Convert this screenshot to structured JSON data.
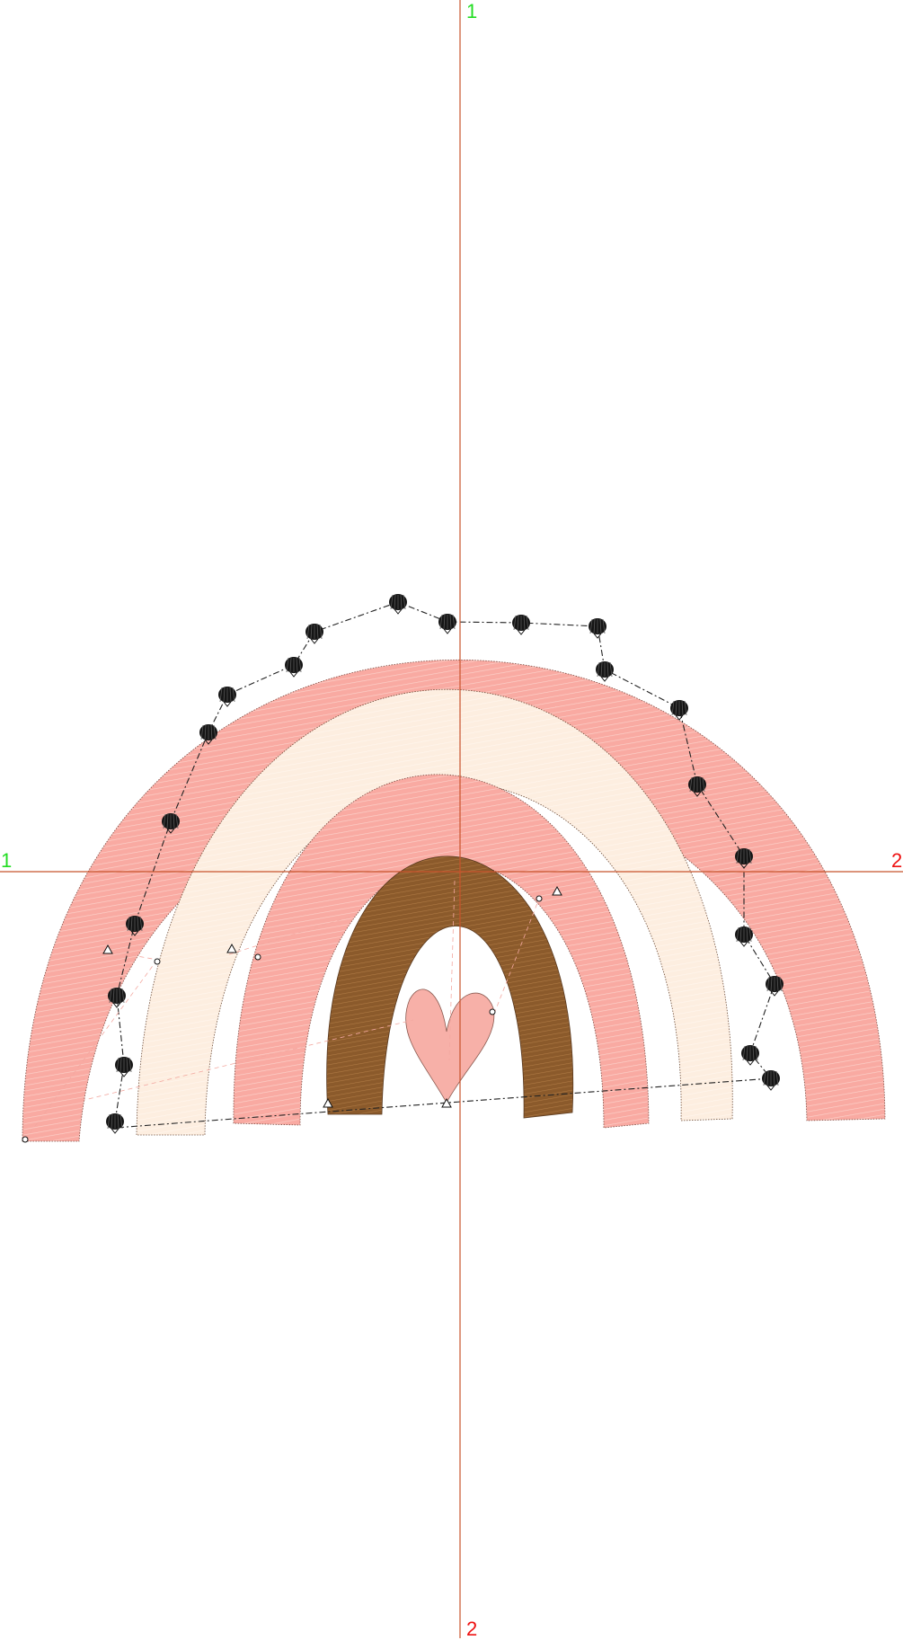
{
  "axes": {
    "vertical": {
      "top_label": "1",
      "bottom_label": "2"
    },
    "horizontal": {
      "left_label": "1",
      "right_label": "2"
    }
  },
  "colors": {
    "background": "#ffffff",
    "axis_line": "#c8532c",
    "label_start": "#22dd22",
    "label_end": "#ee1111",
    "band_pink": "#f9aaa2",
    "band_pink_stitch": "#f6c0b8",
    "band_cream": "#fdeee0",
    "band_cream_stitch": "#fbe3cf",
    "band_brown": "#8b5a2b",
    "band_brown_stitch": "#b07a44",
    "heart": "#f7b0a8",
    "outline": "#5a3a30",
    "motif": "#111111",
    "path_line": "#222222"
  },
  "design": {
    "bands": [
      {
        "id": "outer-pink",
        "color_key": "band_pink"
      },
      {
        "id": "cream",
        "color_key": "band_cream"
      },
      {
        "id": "inner-pink",
        "color_key": "band_pink"
      },
      {
        "id": "brown",
        "color_key": "band_brown"
      }
    ],
    "heart": {
      "color_key": "heart"
    },
    "motif_icon": "shell-icon",
    "marker_icons": [
      "triangle-marker-icon",
      "circle-marker-icon"
    ]
  }
}
